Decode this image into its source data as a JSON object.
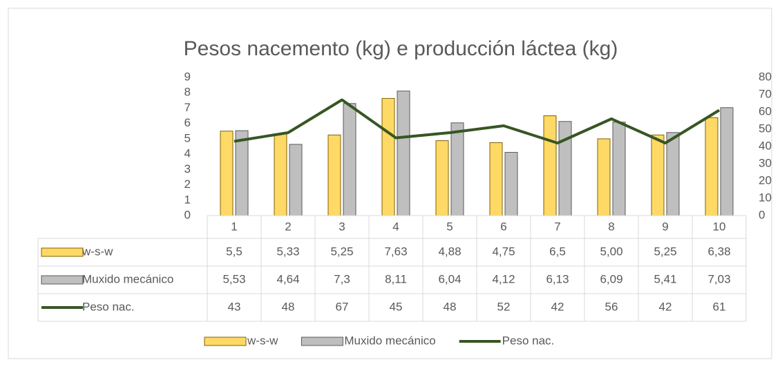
{
  "chart_data": {
    "type": "bar",
    "title": "Pesos nacemento (kg) e producción láctea (kg)",
    "categories": [
      "1",
      "2",
      "3",
      "4",
      "5",
      "6",
      "7",
      "8",
      "9",
      "10"
    ],
    "series": [
      {
        "name": "w-s-w",
        "type": "bar",
        "color": "#ffd966",
        "values": [
          5.5,
          5.33,
          5.25,
          7.63,
          4.88,
          4.75,
          6.5,
          5.0,
          5.25,
          6.38
        ],
        "value_labels": [
          "5,5",
          "5,33",
          "5,25",
          "7,63",
          "4,88",
          "4,75",
          "6,5",
          "5,00",
          "5,25",
          "6,38"
        ]
      },
      {
        "name": "Muxido mecánico",
        "type": "bar",
        "color": "#bfbfbf",
        "values": [
          5.53,
          4.64,
          7.3,
          8.11,
          6.04,
          4.12,
          6.13,
          6.09,
          5.41,
          7.03
        ],
        "value_labels": [
          "5,53",
          "4,64",
          "7,3",
          "8,11",
          "6,04",
          "4,12",
          "6,13",
          "6,09",
          "5,41",
          "7,03"
        ]
      },
      {
        "name": "Peso nac.",
        "type": "line",
        "axis": "y2",
        "color": "#375623",
        "values": [
          43,
          48,
          67,
          45,
          48,
          52,
          42,
          56,
          42,
          61
        ]
      }
    ],
    "ylim": [
      0,
      9
    ],
    "yticks": [
      0,
      1,
      2,
      3,
      4,
      5,
      6,
      7,
      8,
      9
    ],
    "y2lim": [
      0,
      80
    ],
    "y2ticks": [
      0,
      10,
      20,
      30,
      40,
      50,
      60,
      70,
      80
    ],
    "grid": false,
    "legend": "bottom",
    "data_table": true
  }
}
